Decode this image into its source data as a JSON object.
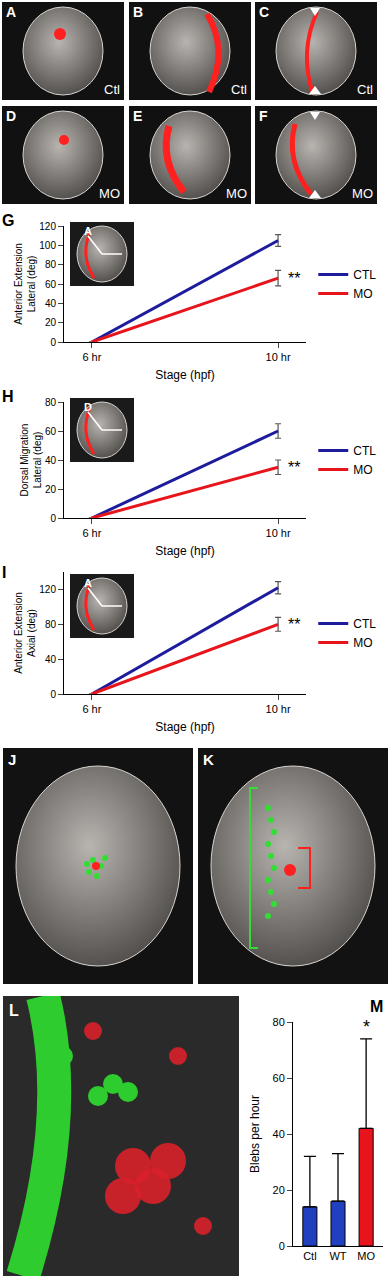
{
  "panels": [
    {
      "label": "A",
      "text": "Ctl"
    },
    {
      "label": "B",
      "text": "Ctl"
    },
    {
      "label": "C",
      "text": "Ctl"
    },
    {
      "label": "D",
      "text": "MO"
    },
    {
      "label": "E",
      "text": "MO"
    },
    {
      "label": "F",
      "text": "MO"
    },
    {
      "label": "J"
    },
    {
      "label": "K"
    },
    {
      "label": "L"
    }
  ],
  "chart_data": [
    {
      "panel": "G",
      "type": "line",
      "y_label": "Anterior Extension\nLateral (deg)",
      "x_label": "Stage (hpf)",
      "inset_label": "A",
      "categories": [
        "6 hr",
        "10 hr"
      ],
      "series": [
        {
          "name": "CTL",
          "color": "#1c1c9c",
          "values": [
            0,
            105
          ],
          "errors": [
            null,
            6
          ]
        },
        {
          "name": "MO",
          "color": "#e8141c",
          "values": [
            0,
            66
          ],
          "errors": [
            null,
            8
          ]
        }
      ],
      "ylim": [
        0,
        120
      ],
      "yticks": [
        0,
        20,
        40,
        60,
        80,
        100,
        120
      ],
      "legend": "right",
      "annotations": [
        {
          "text": "**",
          "category": "10 hr",
          "series": "MO"
        }
      ]
    },
    {
      "panel": "H",
      "type": "line",
      "y_label": "Dorsal Migration\nLateral (deg)",
      "x_label": "Stage (hpf)",
      "inset_label": "D",
      "categories": [
        "6 hr",
        "10 hr"
      ],
      "series": [
        {
          "name": "CTL",
          "color": "#1c1c9c",
          "values": [
            0,
            60
          ],
          "errors": [
            null,
            5
          ]
        },
        {
          "name": "MO",
          "color": "#e8141c",
          "values": [
            0,
            35
          ],
          "errors": [
            null,
            5
          ]
        }
      ],
      "ylim": [
        0,
        80
      ],
      "yticks": [
        0,
        20,
        40,
        60,
        80
      ],
      "legend": "right",
      "annotations": [
        {
          "text": "**",
          "category": "10 hr",
          "series": "MO"
        }
      ]
    },
    {
      "panel": "I",
      "type": "line",
      "y_label": "Anterior Extension\nAxial (deg)",
      "x_label": "Stage (hpf)",
      "inset_label": "A",
      "categories": [
        "6 hr",
        "10 hr"
      ],
      "series": [
        {
          "name": "CTL",
          "color": "#1c1c9c",
          "values": [
            0,
            122
          ],
          "errors": [
            null,
            7
          ]
        },
        {
          "name": "MO",
          "color": "#e8141c",
          "values": [
            0,
            80
          ],
          "errors": [
            null,
            8
          ]
        }
      ],
      "ylim": [
        0,
        140
      ],
      "yticks": [
        0,
        40,
        80,
        120
      ],
      "legend": "right",
      "annotations": [
        {
          "text": "**",
          "category": "10 hr",
          "series": "MO"
        }
      ]
    },
    {
      "panel": "M",
      "type": "bar",
      "y_label": "Blebs per hour",
      "categories": [
        "Ctl",
        "WT",
        "MO"
      ],
      "values": [
        14,
        16,
        42
      ],
      "errors": [
        18,
        17,
        32
      ],
      "colors": [
        "#2040c0",
        "#2040c0",
        "#e8141c"
      ],
      "ylim": [
        0,
        80
      ],
      "yticks": [
        0,
        20,
        40,
        60,
        80
      ],
      "annotations": [
        {
          "text": "*",
          "category": "MO"
        }
      ]
    }
  ]
}
